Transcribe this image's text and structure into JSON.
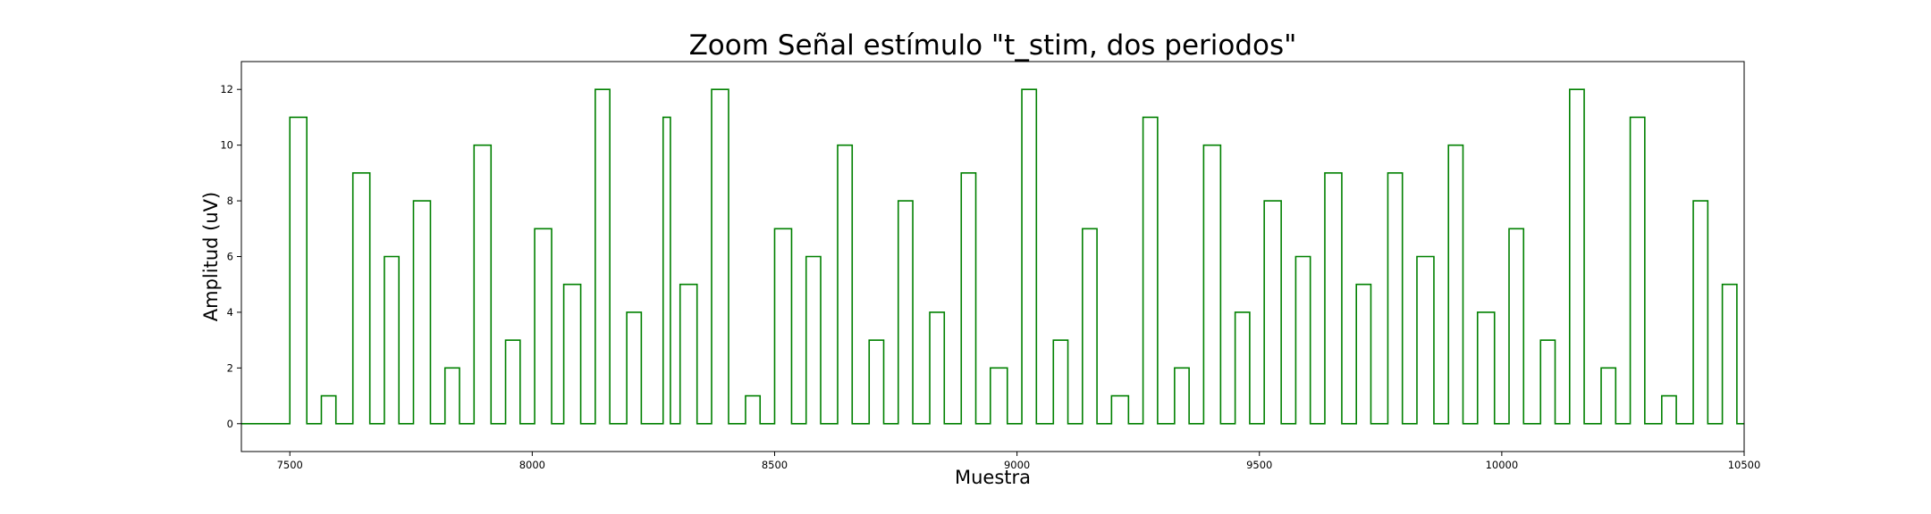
{
  "chart_data": {
    "type": "line",
    "title": "Zoom Señal estímulo \"t_stim, dos periodos\"",
    "xlabel": "Muestra",
    "ylabel": "Amplitud (uV)",
    "xlim": [
      7400,
      10500
    ],
    "ylim": [
      -1,
      13
    ],
    "xticks": [
      7500,
      8000,
      8500,
      9000,
      9500,
      10000,
      10500
    ],
    "yticks": [
      0,
      2,
      4,
      6,
      8,
      10,
      12
    ],
    "grid": false,
    "line_color": "#008000",
    "series": [
      {
        "style": "step",
        "pulse_starts": [
          7500,
          7565,
          7630,
          7695,
          7755,
          7820,
          7880,
          7945,
          8005,
          8065,
          8130,
          8195,
          8270,
          8305,
          8370,
          8440,
          8500,
          8565,
          8630,
          8695,
          8755,
          8820,
          8885,
          8945,
          9010,
          9075,
          9135,
          9195,
          9260,
          9325,
          9385,
          9450,
          9510,
          9575,
          9635,
          9700,
          9765,
          9825,
          9890,
          9950,
          10015,
          10080,
          10140,
          10205,
          10265,
          10330,
          10395,
          10455
        ],
        "pulse_ends": [
          7535,
          7595,
          7665,
          7725,
          7790,
          7850,
          7915,
          7975,
          8040,
          8100,
          8160,
          8225,
          8285,
          8340,
          8405,
          8470,
          8535,
          8595,
          8660,
          8725,
          8785,
          8850,
          8915,
          8980,
          9040,
          9105,
          9165,
          9230,
          9290,
          9355,
          9420,
          9480,
          9545,
          9605,
          9670,
          9730,
          9795,
          9860,
          9920,
          9985,
          10045,
          10110,
          10170,
          10235,
          10295,
          10360,
          10425,
          10485
        ],
        "amplitudes": [
          11,
          1,
          9,
          6,
          8,
          2,
          10,
          3,
          7,
          5,
          12,
          4,
          11,
          5,
          12,
          1,
          7,
          6,
          10,
          3,
          8,
          4,
          9,
          2,
          12,
          3,
          7,
          1,
          11,
          2,
          10,
          4,
          8,
          6,
          9,
          5,
          9,
          6,
          10,
          4,
          7,
          3,
          12,
          2,
          11,
          1,
          8,
          5
        ],
        "baseline": 0
      }
    ]
  }
}
